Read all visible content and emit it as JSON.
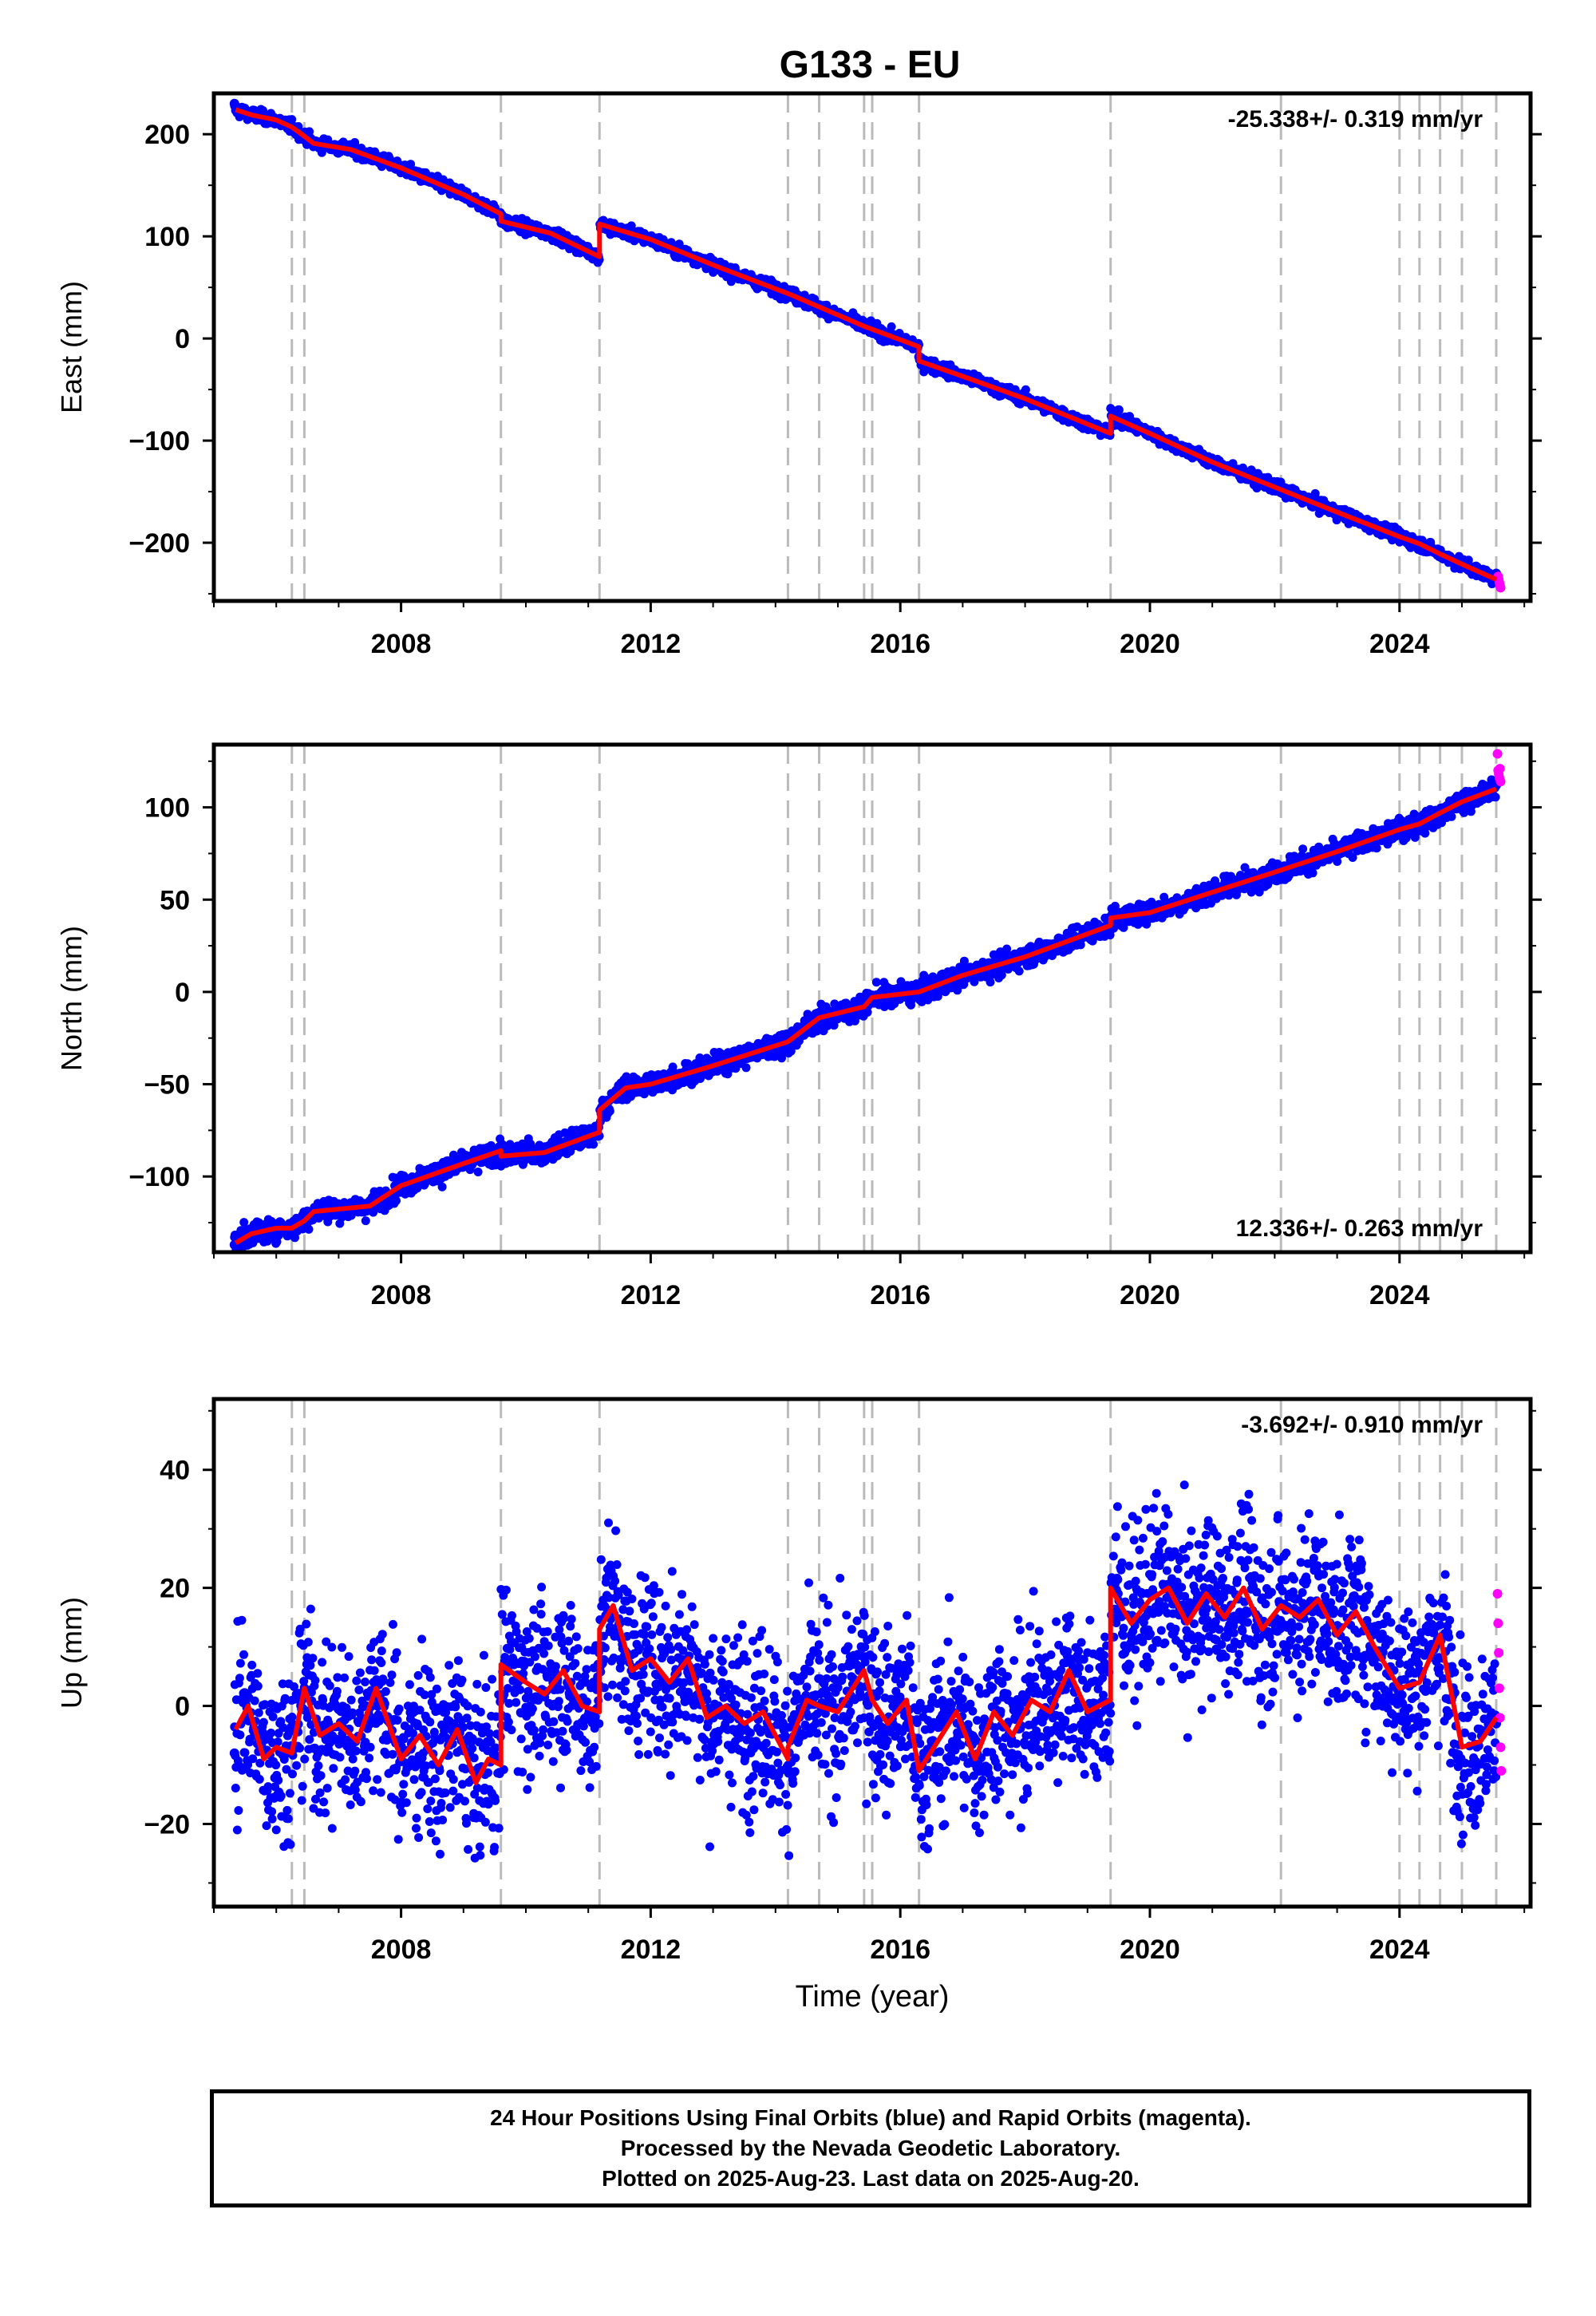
{
  "title": "G133 - EU",
  "footer": {
    "line1": "24 Hour Positions Using Final Orbits (blue) and Rapid Orbits (magenta).",
    "line2": "Processed by the Nevada Geodetic Laboratory.",
    "line3": "Plotted on 2025-Aug-23. Last data on 2025-Aug-20."
  },
  "colors": {
    "final": "#0000ff",
    "rapid": "#ff00ff",
    "model": "#ff0000",
    "breaks": "#bbbbbb"
  },
  "chart_data": [
    {
      "type": "scatter",
      "ylabel": "East (mm)",
      "xlabel": "",
      "xlim": [
        2005.0,
        2026.1
      ],
      "ylim": [
        -257,
        240
      ],
      "yticks": [
        -200,
        -100,
        0,
        100,
        200
      ],
      "xticks": [
        2008,
        2012,
        2016,
        2020,
        2024
      ],
      "rate_label": "-25.338+/- 0.319 mm/yr",
      "rate_position": "top-right",
      "break_years": [
        2006.25,
        2006.45,
        2009.6,
        2011.18,
        2014.2,
        2014.7,
        2015.42,
        2015.55,
        2016.3,
        2019.37,
        2022.1,
        2024.0,
        2024.32,
        2024.65,
        2025.0,
        2025.55
      ],
      "model_knots": [
        [
          2005.35,
          224
        ],
        [
          2005.6,
          219
        ],
        [
          2006.0,
          214
        ],
        [
          2006.25,
          207
        ],
        [
          2006.45,
          198
        ],
        [
          2006.6,
          191
        ],
        [
          2007.2,
          185
        ],
        [
          2008.0,
          167
        ],
        [
          2009.0,
          141
        ],
        [
          2009.6,
          122
        ],
        [
          2009.6,
          115
        ],
        [
          2010.4,
          103
        ],
        [
          2011.18,
          80
        ],
        [
          2011.18,
          112
        ],
        [
          2012.0,
          97
        ],
        [
          2013.0,
          72
        ],
        [
          2014.2,
          44
        ],
        [
          2014.7,
          31
        ],
        [
          2015.42,
          12
        ],
        [
          2015.55,
          9
        ],
        [
          2016.3,
          -8
        ],
        [
          2016.3,
          -22
        ],
        [
          2017.0,
          -37
        ],
        [
          2018.0,
          -59
        ],
        [
          2019.37,
          -93
        ],
        [
          2019.37,
          -76
        ],
        [
          2020.0,
          -93
        ],
        [
          2021.0,
          -121
        ],
        [
          2022.1,
          -148
        ],
        [
          2023.0,
          -170
        ],
        [
          2024.0,
          -194
        ],
        [
          2024.32,
          -201
        ],
        [
          2024.65,
          -211
        ],
        [
          2025.0,
          -221
        ],
        [
          2025.55,
          -236
        ]
      ],
      "final_points": [
        [
          2005.33,
          230
        ],
        [
          2006.3,
          207
        ],
        [
          2007.5,
          183
        ],
        [
          2009.0,
          138
        ],
        [
          2010.6,
          96
        ],
        [
          2011.4,
          110
        ],
        [
          2013.0,
          71
        ],
        [
          2014.2,
          42
        ],
        [
          2016.3,
          -18
        ],
        [
          2018.0,
          -58
        ],
        [
          2019.5,
          -70
        ],
        [
          2021.0,
          -119
        ],
        [
          2023.0,
          -168
        ],
        [
          2024.6,
          -210
        ],
        [
          2025.55,
          -230
        ]
      ],
      "rapid_points": [
        [
          2025.58,
          -233
        ],
        [
          2025.59,
          -236
        ],
        [
          2025.6,
          -239
        ],
        [
          2025.61,
          -242
        ],
        [
          2025.62,
          -244
        ]
      ],
      "noise_sd": 3.0
    },
    {
      "type": "scatter",
      "ylabel": "North (mm)",
      "xlabel": "",
      "xlim": [
        2005.0,
        2026.1
      ],
      "ylim": [
        -141,
        134
      ],
      "yticks": [
        -100,
        -50,
        0,
        50,
        100
      ],
      "xticks": [
        2008,
        2012,
        2016,
        2020,
        2024
      ],
      "rate_label": "12.336+/- 0.263 mm/yr",
      "rate_position": "bottom-right",
      "break_years": [
        2006.25,
        2006.45,
        2009.6,
        2011.18,
        2014.2,
        2014.7,
        2015.42,
        2015.55,
        2016.3,
        2019.37,
        2022.1,
        2024.0,
        2024.32,
        2024.65,
        2025.0,
        2025.55
      ],
      "model_knots": [
        [
          2005.35,
          -136
        ],
        [
          2005.6,
          -131
        ],
        [
          2006.0,
          -128
        ],
        [
          2006.25,
          -128
        ],
        [
          2006.45,
          -124
        ],
        [
          2006.6,
          -119
        ],
        [
          2007.5,
          -116
        ],
        [
          2008.0,
          -105
        ],
        [
          2009.0,
          -93
        ],
        [
          2009.6,
          -86
        ],
        [
          2009.6,
          -89
        ],
        [
          2010.3,
          -87
        ],
        [
          2011.18,
          -76
        ],
        [
          2011.18,
          -64
        ],
        [
          2011.6,
          -52
        ],
        [
          2012.0,
          -50
        ],
        [
          2013.0,
          -40
        ],
        [
          2014.2,
          -27
        ],
        [
          2014.7,
          -14
        ],
        [
          2015.42,
          -8
        ],
        [
          2015.55,
          -3
        ],
        [
          2016.3,
          0
        ],
        [
          2017.0,
          9
        ],
        [
          2018.0,
          19
        ],
        [
          2019.37,
          36
        ],
        [
          2019.37,
          40
        ],
        [
          2020.0,
          43
        ],
        [
          2021.0,
          54
        ],
        [
          2022.1,
          66
        ],
        [
          2023.0,
          76
        ],
        [
          2024.0,
          88
        ],
        [
          2024.32,
          91
        ],
        [
          2024.65,
          97
        ],
        [
          2025.0,
          103
        ],
        [
          2025.55,
          110
        ]
      ],
      "final_points": [
        [
          2005.33,
          -137
        ],
        [
          2006.3,
          -128
        ],
        [
          2008.0,
          -104
        ],
        [
          2009.6,
          -87
        ],
        [
          2011.4,
          -56
        ],
        [
          2013.0,
          -38
        ],
        [
          2015.0,
          -12
        ],
        [
          2017.0,
          9
        ],
        [
          2019.5,
          43
        ],
        [
          2021.0,
          54
        ],
        [
          2023.0,
          78
        ],
        [
          2025.55,
          112
        ]
      ],
      "rapid_points": [
        [
          2025.57,
          129
        ],
        [
          2025.58,
          120
        ],
        [
          2025.59,
          118
        ],
        [
          2025.6,
          116
        ],
        [
          2025.61,
          121
        ],
        [
          2025.62,
          114
        ]
      ],
      "noise_sd": 3.0
    },
    {
      "type": "scatter",
      "ylabel": "Up (mm)",
      "xlabel": "Time (year)",
      "xlim": [
        2005.0,
        2026.1
      ],
      "ylim": [
        -34,
        52
      ],
      "yticks": [
        -20,
        0,
        20,
        40
      ],
      "xticks": [
        2008,
        2012,
        2016,
        2020,
        2024
      ],
      "rate_label": "-3.692+/- 0.910 mm/yr",
      "rate_position": "top-right",
      "break_years": [
        2006.25,
        2006.45,
        2009.6,
        2011.18,
        2014.2,
        2014.7,
        2015.42,
        2015.55,
        2016.3,
        2019.37,
        2022.1,
        2024.0,
        2024.32,
        2024.65,
        2025.0,
        2025.55
      ],
      "model_knots": [
        [
          2005.35,
          -4
        ],
        [
          2005.55,
          0
        ],
        [
          2005.8,
          -9
        ],
        [
          2006.0,
          -7
        ],
        [
          2006.25,
          -8
        ],
        [
          2006.45,
          3
        ],
        [
          2006.7,
          -5
        ],
        [
          2007.0,
          -3
        ],
        [
          2007.3,
          -6
        ],
        [
          2007.6,
          3
        ],
        [
          2008.0,
          -9
        ],
        [
          2008.3,
          -5
        ],
        [
          2008.6,
          -10
        ],
        [
          2008.9,
          -4
        ],
        [
          2009.2,
          -13
        ],
        [
          2009.4,
          -9
        ],
        [
          2009.6,
          -10
        ],
        [
          2009.6,
          7
        ],
        [
          2010.0,
          4
        ],
        [
          2010.3,
          2
        ],
        [
          2010.6,
          6
        ],
        [
          2010.9,
          0
        ],
        [
          2011.18,
          -1
        ],
        [
          2011.18,
          13
        ],
        [
          2011.4,
          17
        ],
        [
          2011.7,
          6
        ],
        [
          2012.0,
          8
        ],
        [
          2012.3,
          4
        ],
        [
          2012.6,
          8
        ],
        [
          2012.9,
          -2
        ],
        [
          2013.2,
          0
        ],
        [
          2013.5,
          -3
        ],
        [
          2013.8,
          -1
        ],
        [
          2014.2,
          -9
        ],
        [
          2014.2,
          -7
        ],
        [
          2014.5,
          1
        ],
        [
          2014.7,
          0
        ],
        [
          2015.0,
          -1
        ],
        [
          2015.42,
          6
        ],
        [
          2015.55,
          1
        ],
        [
          2015.8,
          -3
        ],
        [
          2016.1,
          1
        ],
        [
          2016.3,
          -11
        ],
        [
          2016.6,
          -6
        ],
        [
          2016.9,
          -1
        ],
        [
          2017.2,
          -9
        ],
        [
          2017.5,
          -1
        ],
        [
          2017.8,
          -5
        ],
        [
          2018.1,
          1
        ],
        [
          2018.4,
          -1
        ],
        [
          2018.7,
          6
        ],
        [
          2019.0,
          -1
        ],
        [
          2019.37,
          1
        ],
        [
          2019.37,
          20
        ],
        [
          2019.7,
          14
        ],
        [
          2020.0,
          18
        ],
        [
          2020.3,
          20
        ],
        [
          2020.6,
          14
        ],
        [
          2020.9,
          19
        ],
        [
          2021.2,
          15
        ],
        [
          2021.5,
          20
        ],
        [
          2021.8,
          13
        ],
        [
          2022.1,
          17
        ],
        [
          2022.4,
          15
        ],
        [
          2022.7,
          18
        ],
        [
          2023.0,
          12
        ],
        [
          2023.3,
          16
        ],
        [
          2023.6,
          10
        ],
        [
          2024.0,
          3
        ],
        [
          2024.32,
          4
        ],
        [
          2024.65,
          12
        ],
        [
          2025.0,
          -7
        ],
        [
          2025.3,
          -6
        ],
        [
          2025.55,
          -2
        ]
      ],
      "final_points": [
        [
          2005.33,
          -8
        ],
        [
          2006.3,
          -7
        ],
        [
          2007.5,
          -3
        ],
        [
          2009.2,
          -11
        ],
        [
          2010.5,
          4
        ],
        [
          2011.5,
          14
        ],
        [
          2013.0,
          -2
        ],
        [
          2014.5,
          0
        ],
        [
          2016.5,
          -6
        ],
        [
          2018.5,
          2
        ],
        [
          2020.0,
          19
        ],
        [
          2022.5,
          17
        ],
        [
          2024.0,
          3
        ],
        [
          2025.55,
          -3
        ]
      ],
      "rapid_points": [
        [
          2025.57,
          19
        ],
        [
          2025.58,
          14
        ],
        [
          2025.59,
          9
        ],
        [
          2025.6,
          3
        ],
        [
          2025.61,
          -2
        ],
        [
          2025.62,
          -7
        ],
        [
          2025.63,
          -11
        ]
      ],
      "noise_sd": 7.0
    }
  ]
}
